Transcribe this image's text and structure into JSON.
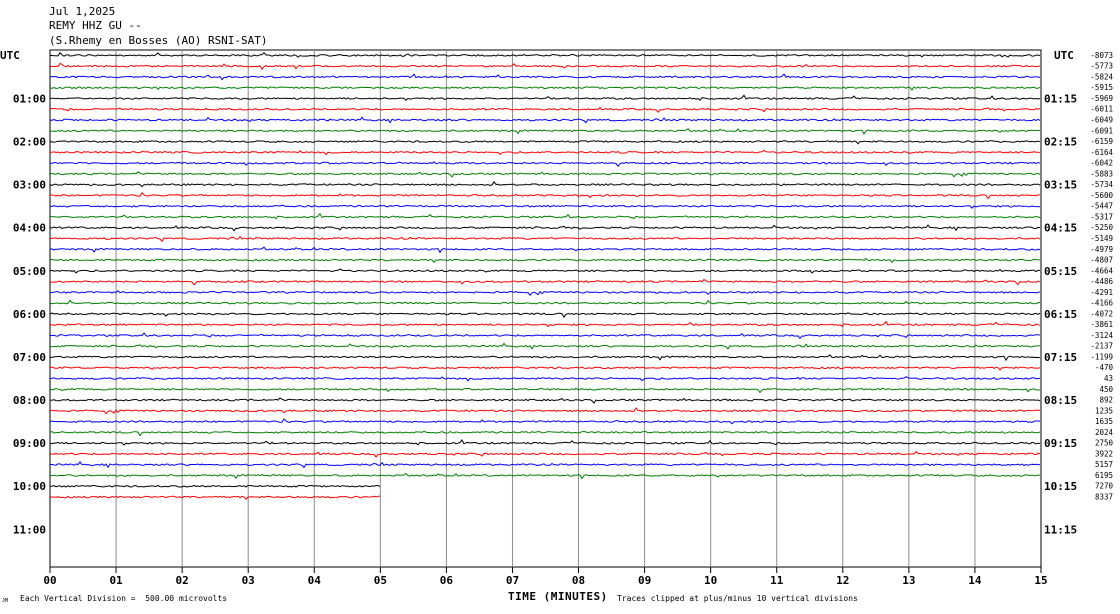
{
  "header": {
    "date": "Jul 1,2025",
    "station": "REMY HHZ GU --",
    "location": "(S.Rhemy en Bosses (AO) RSNI-SAT)"
  },
  "chart_data": {
    "type": "line",
    "title": "",
    "left_axis_label": "UTC",
    "right_axis_label": "UTC",
    "left_hour_labels": [
      "01:00",
      "02:00",
      "03:00",
      "04:00",
      "05:00",
      "06:00",
      "07:00",
      "08:00",
      "09:00",
      "10:00",
      "11:00"
    ],
    "right_hour_labels": [
      "01:15",
      "02:15",
      "03:15",
      "04:15",
      "05:15",
      "06:15",
      "07:15",
      "08:15",
      "09:15",
      "10:15",
      "11:15"
    ],
    "trace_offsets": [
      "-8073",
      "-5773",
      "-5824",
      "-5915",
      "-5969",
      "-6011",
      "-6049",
      "-6091",
      "-6159",
      "-6164",
      "-6042",
      "-5883",
      "-5734",
      "-5600",
      "-5447",
      "-5317",
      "-5250",
      "-5149",
      "-4979",
      "-4807",
      "-4664",
      "-4486",
      "-4291",
      "-4166",
      "-4072",
      "-3861",
      "-3124",
      "-2137",
      "-1199",
      "-470",
      "43",
      "450",
      "892",
      "1235",
      "1635",
      "2024",
      "2750",
      "3922",
      "5157",
      "6195",
      "7270",
      "8337"
    ],
    "trace_colors": [
      "#000000",
      "#ff0000",
      "#0000ff",
      "#008000"
    ],
    "traces_total_slots": 48,
    "traces_recorded": 42,
    "last_trace_end_minute": 5,
    "x_tick_labels": [
      "00",
      "01",
      "02",
      "03",
      "04",
      "05",
      "06",
      "07",
      "08",
      "09",
      "10",
      "11",
      "12",
      "13",
      "14",
      "15"
    ],
    "xlim": [
      0,
      15
    ],
    "xlabel": "TIME (MINUTES)",
    "grid": true,
    "footer_left": "Each Vertical Division =  500.00 microvolts",
    "footer_right": "Traces clipped at plus/minus 10 vertical divisions",
    "corner_mark": "JM"
  }
}
